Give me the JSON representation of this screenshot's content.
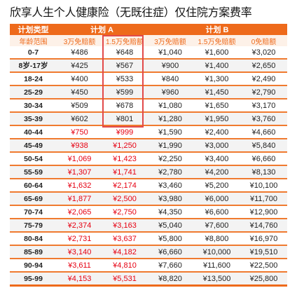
{
  "title": "欣享人生个人健康险（无既往症）仅住院方案费率",
  "table": {
    "header1": {
      "type": "计划类型",
      "plan_a": "计划 A",
      "plan_b": "计划 B"
    },
    "header2": [
      "年龄范围",
      "3万免赔额",
      "1.5万免赔额",
      "3万免赔额",
      "1.5万免赔额",
      "0免赔额"
    ],
    "rows": [
      {
        "cells": [
          "0-7",
          "¥486",
          "¥648",
          "¥1,040",
          "¥1,600",
          "¥3,020"
        ],
        "red": false
      },
      {
        "cells": [
          "8岁-17岁",
          "¥425",
          "¥567",
          "¥900",
          "¥1,400",
          "¥2,650"
        ],
        "red": false
      },
      {
        "cells": [
          "18-24",
          "¥400",
          "¥533",
          "¥840",
          "¥1,300",
          "¥2,490"
        ],
        "red": false
      },
      {
        "cells": [
          "25-29",
          "¥450",
          "¥599",
          "¥960",
          "¥1,450",
          "¥2,790"
        ],
        "red": false
      },
      {
        "cells": [
          "30-34",
          "¥509",
          "¥678",
          "¥1,080",
          "¥1,650",
          "¥3,170"
        ],
        "red": false
      },
      {
        "cells": [
          "35-39",
          "¥602",
          "¥801",
          "¥1,280",
          "¥1,950",
          "¥3,760"
        ],
        "red": false
      },
      {
        "cells": [
          "40-44",
          "¥750",
          "¥999",
          "¥1,590",
          "¥2,400",
          "¥4,660"
        ],
        "red": true
      },
      {
        "cells": [
          "45-49",
          "¥938",
          "¥1,250",
          "¥1,990",
          "¥3,000",
          "¥5,840"
        ],
        "red": true
      },
      {
        "cells": [
          "50-54",
          "¥1,069",
          "¥1,423",
          "¥2,250",
          "¥3,400",
          "¥6,660"
        ],
        "red": true
      },
      {
        "cells": [
          "55-59",
          "¥1,307",
          "¥1,741",
          "¥2,780",
          "¥4,200",
          "¥8,130"
        ],
        "red": true
      },
      {
        "cells": [
          "60-64",
          "¥1,632",
          "¥2,174",
          "¥3,460",
          "¥5,200",
          "¥10,100"
        ],
        "red": true
      },
      {
        "cells": [
          "65-69",
          "¥1,877",
          "¥2,500",
          "¥3,980",
          "¥6,000",
          "¥11,700"
        ],
        "red": true
      },
      {
        "cells": [
          "70-74",
          "¥2,065",
          "¥2,750",
          "¥4,350",
          "¥6,600",
          "¥12,900"
        ],
        "red": true
      },
      {
        "cells": [
          "75-79",
          "¥2,374",
          "¥3,163",
          "¥5,040",
          "¥7,600",
          "¥14,760"
        ],
        "red": true
      },
      {
        "cells": [
          "80-84",
          "¥2,731",
          "¥3,637",
          "¥5,800",
          "¥8,800",
          "¥16,970"
        ],
        "red": true
      },
      {
        "cells": [
          "85-89",
          "¥3,140",
          "¥4,182",
          "¥6,660",
          "¥10,000",
          "¥19,510"
        ],
        "red": true
      },
      {
        "cells": [
          "90-94",
          "¥3,611",
          "¥4,810",
          "¥7,660",
          "¥11,600",
          "¥22,500"
        ],
        "red": true
      },
      {
        "cells": [
          "95-99",
          "¥4,153",
          "¥5,531",
          "¥8,820",
          "¥13,500",
          "¥25,800"
        ],
        "red": true
      }
    ]
  },
  "colors": {
    "header_bg": "#ee6a1b",
    "accent_text": "#ee6a1b",
    "highlight_red": "#e60012",
    "plan_a_box": "#e24a4a"
  }
}
